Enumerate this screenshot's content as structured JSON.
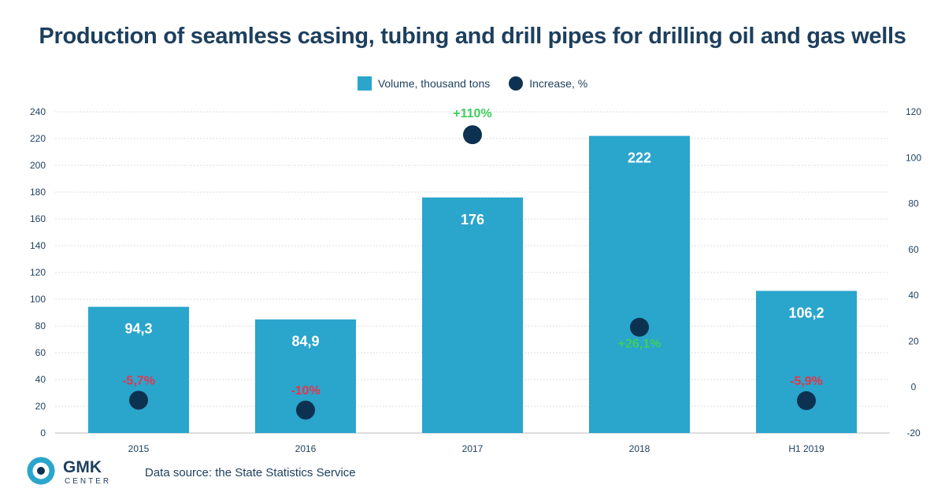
{
  "title": "Production of seamless casing, tubing and drill pipes for drilling oil and gas wells",
  "legend": {
    "volume": "Volume, thousand tons",
    "increase": "Increase, %"
  },
  "source": "Data source: the State Statistics Service",
  "logo": {
    "name": "GMK",
    "sub": "CENTER"
  },
  "colors": {
    "bar": "#2aa5cc",
    "dot": "#0d3251",
    "positive": "#3ecf5c",
    "negative": "#e8344b",
    "text": "#1d3f5e",
    "grid": "#dcdcdc"
  },
  "chart_data": {
    "type": "bar",
    "categories": [
      "2015",
      "2016",
      "2017",
      "2018",
      "H1 2019"
    ],
    "series": [
      {
        "name": "Volume, thousand tons",
        "type": "bar",
        "axis": "left",
        "values": [
          94.3,
          84.9,
          176,
          222,
          106.2
        ],
        "labels": [
          "94,3",
          "84,9",
          "176",
          "222",
          "106,2"
        ]
      },
      {
        "name": "Increase, %",
        "type": "scatter",
        "axis": "right",
        "values": [
          -5.7,
          -10,
          110,
          26.1,
          -5.9
        ],
        "labels": [
          "-5,7%",
          "-10%",
          "+110%",
          "+26,1%",
          "-5,9%"
        ]
      }
    ],
    "ylim_left": [
      0,
      240
    ],
    "yticks_left": [
      0,
      20,
      40,
      60,
      80,
      100,
      120,
      140,
      160,
      180,
      200,
      220,
      240
    ],
    "ylim_right": [
      -20,
      120
    ],
    "yticks_right": [
      -20,
      0,
      20,
      40,
      60,
      80,
      100,
      120
    ],
    "grid": true,
    "legend_position": "top-center"
  }
}
